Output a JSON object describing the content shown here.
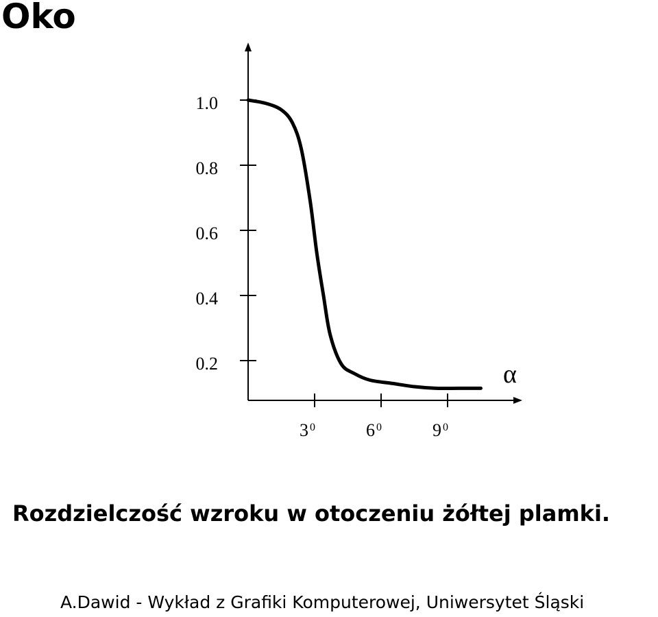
{
  "title": "Oko",
  "caption": "Rozdzielczość wzroku w otoczeniu żółtej plamki.",
  "footer": "A.Dawid - Wykład z Grafiki Komputerowej, Uniwersytet Śląski",
  "chart_data": {
    "type": "line",
    "x_label": "α",
    "y_ticks": [
      "1.0",
      "0.8",
      "0.6",
      "0.4",
      "0.2"
    ],
    "y_tick_values": [
      1.0,
      0.8,
      0.6,
      0.4,
      0.2
    ],
    "x_ticks": [
      {
        "value": 3,
        "base": "3",
        "sup": "0"
      },
      {
        "value": 6,
        "base": "6",
        "sup": "0"
      },
      {
        "value": 9,
        "base": "9",
        "sup": "0"
      }
    ],
    "xlim": [
      0,
      12
    ],
    "ylim": [
      0,
      1.0
    ],
    "series": [
      {
        "x": [
          0,
          0.8,
          1.5,
          2.0,
          2.4,
          2.8,
          3.1,
          3.4,
          3.7,
          4.2,
          4.8,
          5.5,
          6.5,
          7.5,
          8.5,
          9.5,
          10.5
        ],
        "y": [
          1.0,
          0.99,
          0.97,
          0.93,
          0.85,
          0.69,
          0.53,
          0.4,
          0.28,
          0.19,
          0.16,
          0.14,
          0.13,
          0.12,
          0.115,
          0.115,
          0.115
        ]
      }
    ],
    "grid": false,
    "legend": "none"
  }
}
